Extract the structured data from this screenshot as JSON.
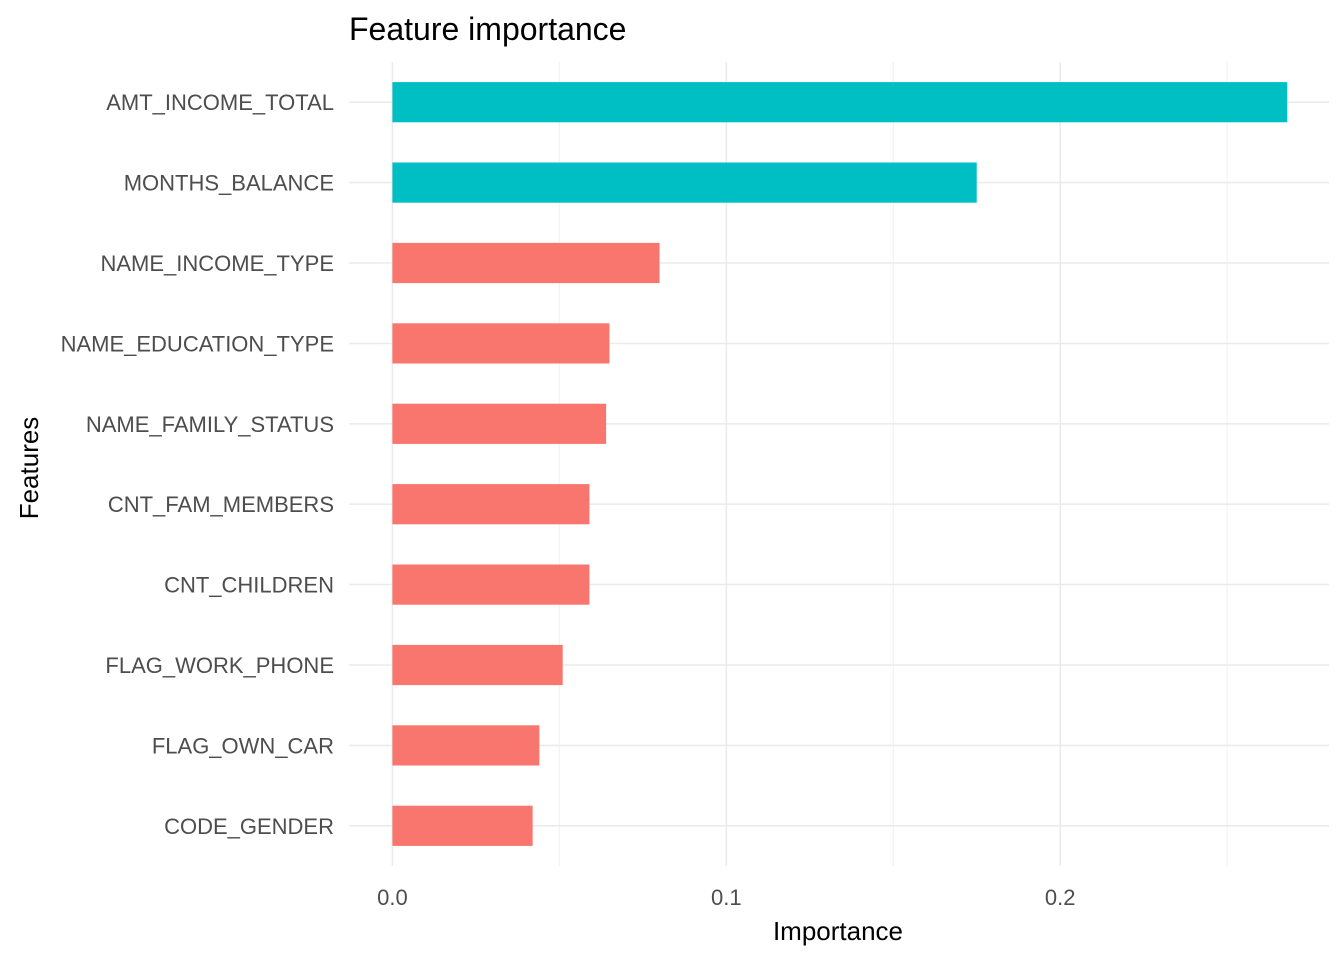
{
  "chart_data": {
    "type": "bar",
    "orientation": "horizontal",
    "title": "Feature importance",
    "xlabel": "Importance",
    "ylabel": "Features",
    "categories": [
      "AMT_INCOME_TOTAL",
      "MONTHS_BALANCE",
      "NAME_INCOME_TYPE",
      "NAME_EDUCATION_TYPE",
      "NAME_FAMILY_STATUS",
      "CNT_FAM_MEMBERS",
      "CNT_CHILDREN",
      "FLAG_WORK_PHONE",
      "FLAG_OWN_CAR",
      "CODE_GENDER"
    ],
    "values": [
      0.268,
      0.175,
      0.08,
      0.065,
      0.064,
      0.059,
      0.059,
      0.051,
      0.044,
      0.042
    ],
    "bar_colors": [
      "#00BFC4",
      "#00BFC4",
      "#F8766D",
      "#F8766D",
      "#F8766D",
      "#F8766D",
      "#F8766D",
      "#F8766D",
      "#F8766D",
      "#F8766D"
    ],
    "x_ticks": [
      {
        "value": 0.0,
        "label": "0.0"
      },
      {
        "value": 0.1,
        "label": "0.1"
      },
      {
        "value": 0.2,
        "label": "0.2"
      }
    ],
    "xlim": [
      -0.013,
      0.2805
    ],
    "grid": true,
    "legend": "none"
  }
}
